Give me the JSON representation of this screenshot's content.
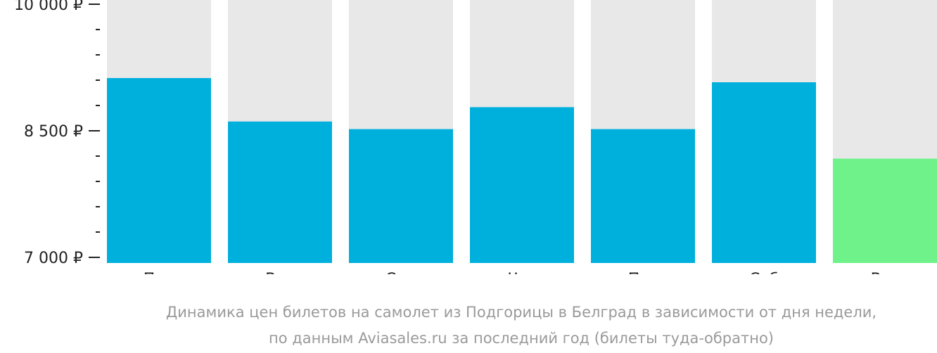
{
  "colors": {
    "bar": "#00b0dc",
    "bar_highlight": "#6ef289",
    "track": "#e8e8e8",
    "axis_text": "#222222",
    "caption_text": "#9a9a9a"
  },
  "chart_data": {
    "type": "bar",
    "categories": [
      "Пон",
      "Втр",
      "Срд",
      "Чтв",
      "Пят",
      "Суб",
      "Вос"
    ],
    "values": [
      9125,
      8610,
      8520,
      8780,
      8520,
      9075,
      8170
    ],
    "highlight_index": 6,
    "ylim": [
      7000,
      10000
    ],
    "yticks": [
      {
        "value": 10000,
        "label": "10 000 ₽"
      },
      {
        "value": 8500,
        "label": "8 500 ₽"
      },
      {
        "value": 7000,
        "label": "7 000 ₽"
      }
    ],
    "minor_tick_step": 300,
    "title": "",
    "xlabel": "",
    "ylabel": ""
  },
  "caption": {
    "line1": "Динамика цен билетов на самолет из Подгорицы в Белград в зависимости от дня недели,",
    "line2": "по данным Aviasales.ru за последний год (билеты туда-обратно)"
  }
}
